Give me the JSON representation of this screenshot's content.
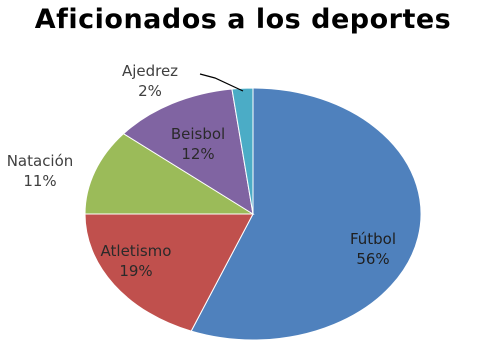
{
  "chart_data": {
    "type": "pie",
    "title": "Aficionados a los deportes",
    "slices": [
      {
        "label": "Fútbol",
        "value": 56,
        "value_label": "56%",
        "color": "#4F81BD"
      },
      {
        "label": "Atletismo",
        "value": 19,
        "value_label": "19%",
        "color": "#C0504D"
      },
      {
        "label": "Natación",
        "value": 11,
        "value_label": "11%",
        "color": "#9BBB59"
      },
      {
        "label": "Beisbol",
        "value": 12,
        "value_label": "12%",
        "color": "#8064A2"
      },
      {
        "label": "Ajedrez",
        "value": 2,
        "value_label": "2%",
        "color": "#4BACC6"
      }
    ],
    "legend": "none",
    "data_labels": "category and percent"
  }
}
